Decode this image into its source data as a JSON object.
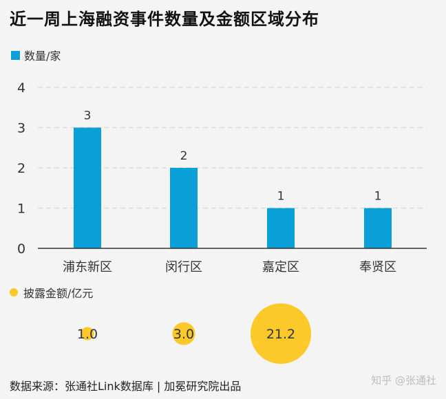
{
  "title": "近一周上海融资事件数量及金额区域分布",
  "legend": {
    "count_label": "数量/家",
    "amount_label": "披露金额/亿元"
  },
  "colors": {
    "bar": "#0a9fd6",
    "bubble": "#fbc929",
    "axis": "#333333",
    "grid": "#d6d6d6"
  },
  "chart_data": [
    {
      "type": "bar",
      "categories": [
        "浦东新区",
        "闵行区",
        "嘉定区",
        "奉贤区"
      ],
      "values": [
        3,
        2,
        1,
        1
      ],
      "ylim": [
        0,
        4
      ],
      "yticks": [
        0,
        1,
        2,
        3,
        4
      ],
      "grid": true
    },
    {
      "type": "scatter",
      "x": [
        "浦东新区",
        "闵行区",
        "嘉定区"
      ],
      "values": [
        1.0,
        3.0,
        21.2
      ],
      "labels": [
        "1.0",
        "3.0",
        "21.2"
      ]
    }
  ],
  "footer": "数据来源：张通社Link数据库 | 加冕研究院出品",
  "watermark": "知乎 @张通社"
}
